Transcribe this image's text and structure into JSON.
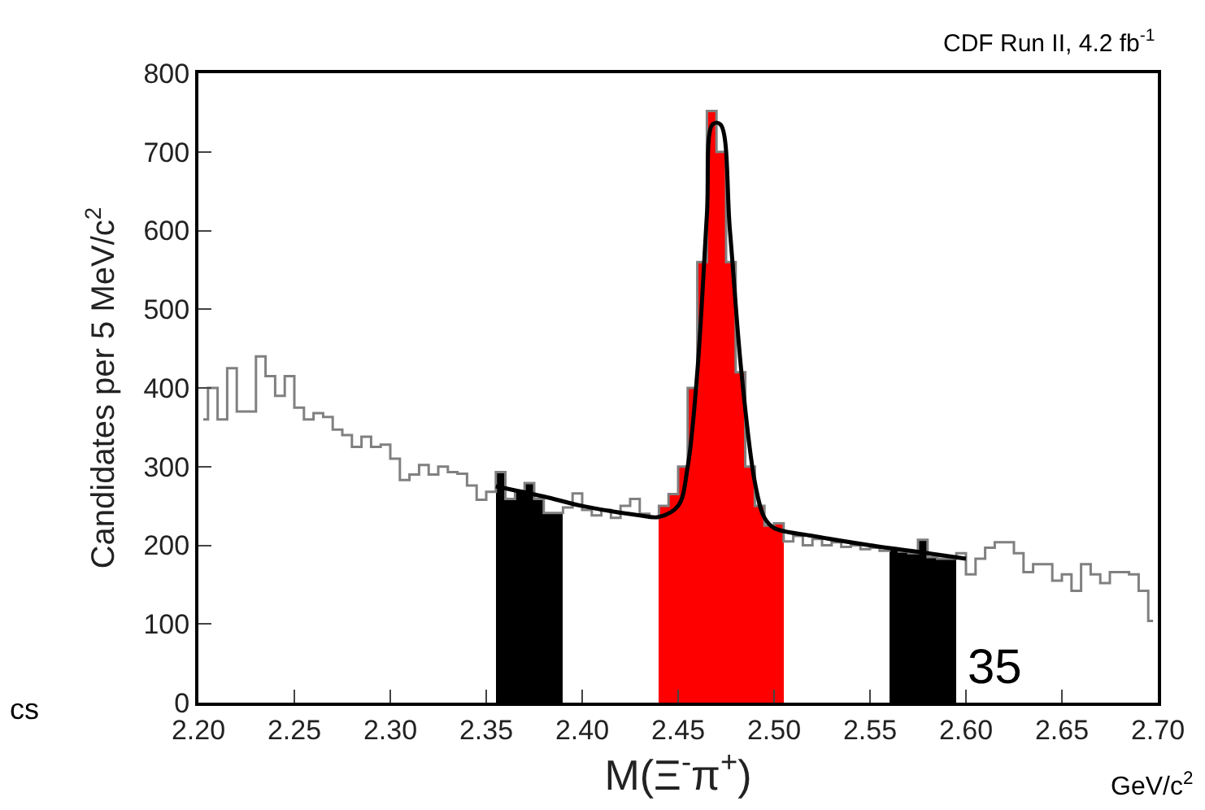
{
  "chart_data": {
    "type": "histogram",
    "xlabel": "M(Ξ$^{-}$π$^{+}$)",
    "ylabel": "Candidates per 5 MeV/c$^{2}$",
    "annotations": [
      "CDF Run II, 4.2 fb$^{-1}$",
      "GeV/c$^{2}$",
      "35",
      "cs"
    ],
    "bins": [
      2.2,
      2.205,
      2.21,
      2.215,
      2.22,
      2.225,
      2.23,
      2.235,
      2.24,
      2.245,
      2.25,
      2.255,
      2.26,
      2.265,
      2.27,
      2.275,
      2.28,
      2.285,
      2.29,
      2.295,
      2.3,
      2.305,
      2.31,
      2.315,
      2.32,
      2.325,
      2.33,
      2.335,
      2.34,
      2.345,
      2.35,
      2.355,
      2.36,
      2.365,
      2.37,
      2.375,
      2.38,
      2.385,
      2.39,
      2.395,
      2.4,
      2.405,
      2.41,
      2.415,
      2.42,
      2.425,
      2.43,
      2.435,
      2.44,
      2.445,
      2.45,
      2.455,
      2.46,
      2.465,
      2.47,
      2.475,
      2.48,
      2.485,
      2.49,
      2.495,
      2.5,
      2.505,
      2.51,
      2.515,
      2.52,
      2.525,
      2.53,
      2.535,
      2.54,
      2.545,
      2.55,
      2.555,
      2.56,
      2.565,
      2.57,
      2.575,
      2.58,
      2.585,
      2.59,
      2.595,
      2.6,
      2.605,
      2.61,
      2.615,
      2.62,
      2.625,
      2.63,
      2.635,
      2.64,
      2.645,
      2.65,
      2.655,
      2.66,
      2.665,
      2.67,
      2.675,
      2.68,
      2.685,
      2.69,
      2.695,
      2.7
    ],
    "series": [
      {
        "type": "step",
        "color": "#808080",
        "x": [
          2.2025,
          2.2075,
          2.2125,
          2.2175,
          2.2225,
          2.2275,
          2.2325,
          2.2375,
          2.2425,
          2.2475,
          2.2525,
          2.2575,
          2.2625,
          2.2675,
          2.2725,
          2.2775,
          2.2825,
          2.2875,
          2.2925,
          2.2975,
          2.3025,
          2.3075,
          2.3125,
          2.3175,
          2.3225,
          2.3275,
          2.3325,
          2.3375,
          2.3425,
          2.3475,
          2.3525,
          2.3575,
          2.3625,
          2.3675,
          2.3725,
          2.3775,
          2.3825,
          2.3875,
          2.3925,
          2.3975,
          2.4025,
          2.4075,
          2.4125,
          2.4175,
          2.4225,
          2.4275,
          2.4325,
          2.4375,
          2.4425,
          2.4475,
          2.4525,
          2.4575,
          2.4625,
          2.4675,
          2.4725,
          2.4775,
          2.4825,
          2.4875,
          2.4925,
          2.4975,
          2.5025,
          2.5075,
          2.5125,
          2.5175,
          2.5225,
          2.5275,
          2.5325,
          2.5375,
          2.5425,
          2.5475,
          2.5525,
          2.5575,
          2.5625,
          2.5675,
          2.5725,
          2.5775,
          2.5825,
          2.5875,
          2.5925,
          2.5975,
          2.6025,
          2.6075,
          2.6125,
          2.6175,
          2.6225,
          2.6275,
          2.6325,
          2.6375,
          2.6425,
          2.6475,
          2.6525,
          2.6575,
          2.6625,
          2.6675,
          2.6725,
          2.6775,
          2.6825,
          2.6875,
          2.6925,
          2.6975
        ],
        "values": [
          360,
          400,
          360,
          425,
          370,
          370,
          440,
          415,
          390,
          415,
          375,
          360,
          368,
          363,
          347,
          340,
          325,
          338,
          325,
          328,
          310,
          283,
          290,
          302,
          290,
          300,
          293,
          291,
          276,
          258,
          268,
          293,
          259,
          269,
          279,
          259,
          241,
          241,
          248,
          266,
          245,
          238,
          245,
          235,
          250,
          259,
          240,
          235,
          250,
          265,
          300,
          400,
          560,
          752,
          700,
          560,
          420,
          300,
          250,
          225,
          228,
          205,
          212,
          200,
          208,
          200,
          204,
          198,
          200,
          195,
          197,
          193,
          195,
          192,
          190,
          207,
          185,
          183,
          183,
          190,
          163,
          183,
          197,
          204,
          204,
          190,
          166,
          176,
          176,
          155,
          163,
          142,
          176,
          163,
          152,
          166,
          166,
          163,
          142,
          104
        ]
      },
      {
        "values": [
          null,
          null,
          null,
          null,
          null,
          null,
          null,
          null,
          null,
          null,
          null,
          null,
          null,
          null,
          null,
          null,
          null,
          null,
          null,
          null,
          null,
          null,
          null,
          null,
          null,
          null,
          null,
          null,
          null,
          null,
          null,
          293,
          259,
          269,
          279,
          259,
          241,
          241,
          null,
          null,
          null,
          null,
          null,
          null,
          null,
          null,
          null,
          null,
          250,
          265,
          300,
          400,
          560,
          752,
          700,
          560,
          420,
          300,
          250,
          225,
          228,
          null,
          null,
          null,
          null,
          null,
          null,
          null,
          null,
          null,
          null,
          null,
          195,
          192,
          190,
          207,
          185,
          183,
          183,
          null,
          null,
          null,
          null,
          null,
          null,
          null,
          null,
          null,
          null,
          null,
          null,
          null,
          null,
          null,
          null,
          null,
          null,
          null,
          null,
          null
        ],
        "colors": [
          "#ffffff",
          "#ffffff",
          "#ffffff",
          "#ffffff",
          "#ffffff",
          "#ffffff",
          "#ffffff",
          "#ffffff",
          "#ffffff",
          "#ffffff",
          "#ffffff",
          "#ffffff",
          "#ffffff",
          "#ffffff",
          "#ffffff",
          "#ffffff",
          "#ffffff",
          "#ffffff",
          "#ffffff",
          "#ffffff",
          "#ffffff",
          "#ffffff",
          "#ffffff",
          "#ffffff",
          "#ffffff",
          "#ffffff",
          "#ffffff",
          "#ffffff",
          "#ffffff",
          "#ffffff",
          "#ffffff",
          "#000000",
          "#000000",
          "#000000",
          "#000000",
          "#000000",
          "#000000",
          "#000000",
          "#ffffff",
          "#ffffff",
          "#ffffff",
          "#ffffff",
          "#ffffff",
          "#ffffff",
          "#ffffff",
          "#ffffff",
          "#ffffff",
          "#ffffff",
          "#ff0000",
          "#ff0000",
          "#ff0000",
          "#ff0000",
          "#ff0000",
          "#ff0000",
          "#ff0000",
          "#ff0000",
          "#ff0000",
          "#ff0000",
          "#ff0000",
          "#ff0000",
          "#ff0000",
          "#ffffff",
          "#ffffff",
          "#ffffff",
          "#ffffff",
          "#ffffff",
          "#ffffff",
          "#ffffff",
          "#ffffff",
          "#ffffff",
          "#ffffff",
          "#ffffff",
          "#000000",
          "#000000",
          "#000000",
          "#000000",
          "#000000",
          "#000000",
          "#000000",
          "#ffffff",
          "#ffffff",
          "#ffffff",
          "#ffffff",
          "#ffffff",
          "#ffffff",
          "#ffffff",
          "#ffffff",
          "#ffffff",
          "#ffffff",
          "#ffffff",
          "#ffffff",
          "#ffffff",
          "#ffffff",
          "#ffffff",
          "#ffffff",
          "#ffffff",
          "#ffffff",
          "#ffffff",
          "#ffffff",
          "#ffffff"
        ]
      },
      {
        "type": "line",
        "color": "#000000",
        "x": [
          2.355,
          2.38,
          2.4,
          2.43,
          2.44,
          2.45,
          2.455,
          2.46,
          2.465,
          2.468,
          2.472,
          2.477,
          2.483,
          2.49,
          2.495,
          2.5,
          2.52,
          2.55,
          2.58,
          2.6
        ],
        "values": [
          275,
          262,
          250,
          238,
          236,
          250,
          300,
          420,
          620,
          735,
          735,
          600,
          420,
          280,
          235,
          222,
          212,
          200,
          190,
          183
        ]
      }
    ],
    "xlim": [
      2.2,
      2.7
    ],
    "xticks": [
      {
        "value": 2.2,
        "label": "2.20"
      },
      {
        "value": 2.25,
        "label": "2.25"
      },
      {
        "value": 2.3,
        "label": "2.30"
      },
      {
        "value": 2.35,
        "label": "2.35"
      },
      {
        "value": 2.4,
        "label": "2.40"
      },
      {
        "value": 2.45,
        "label": "2.45"
      },
      {
        "value": 2.5,
        "label": "2.50"
      },
      {
        "value": 2.55,
        "label": "2.55"
      },
      {
        "value": 2.6,
        "label": "2.60"
      },
      {
        "value": 2.65,
        "label": "2.65"
      },
      {
        "value": 2.7,
        "label": "2.70"
      }
    ],
    "ylim": [
      0,
      800
    ],
    "yticks": [
      0,
      100,
      200,
      300,
      400,
      500,
      600,
      700,
      800
    ]
  }
}
